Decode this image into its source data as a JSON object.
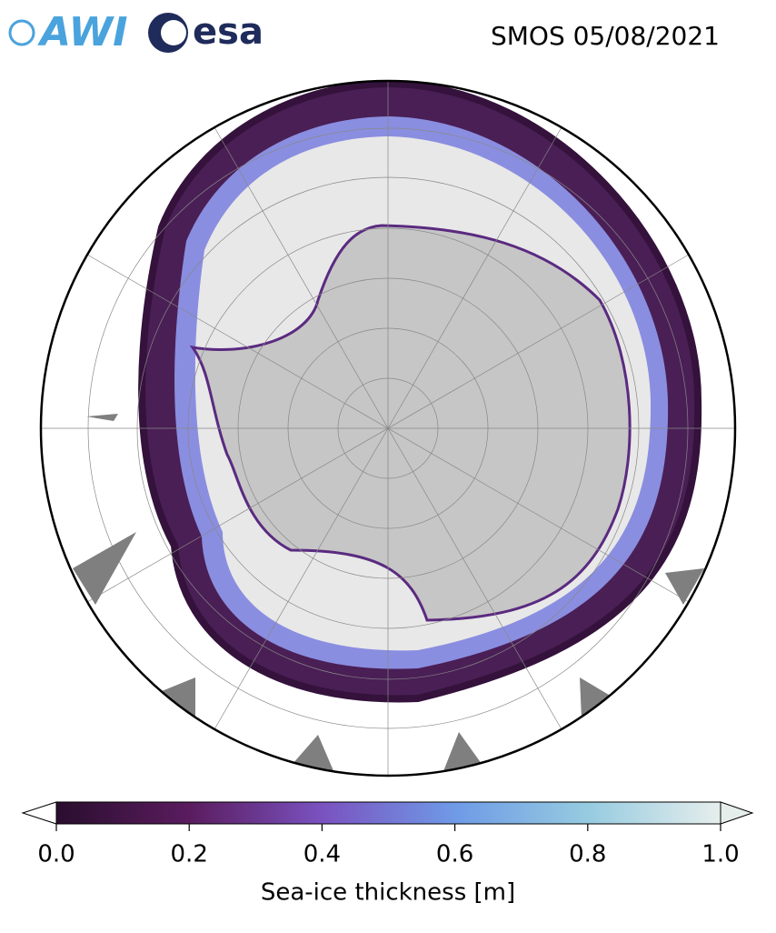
{
  "header": {
    "logos": [
      "AWI",
      "esa"
    ],
    "title": "SMOS 05/08/2021"
  },
  "colorbar": {
    "label": "Sea-ice thickness [m]",
    "lim": [
      0,
      1
    ],
    "ticks": [
      {
        "value": 0,
        "label": "0.0"
      },
      {
        "value": 0.2,
        "label": "0.2"
      },
      {
        "value": 0.4,
        "label": "0.4"
      },
      {
        "value": 0.6,
        "label": "0.6"
      },
      {
        "value": 0.8,
        "label": "0.8"
      },
      {
        "value": 1,
        "label": "1.0"
      }
    ],
    "colors": [
      "#2a0e2e",
      "#5a1c5e",
      "#7a52c0",
      "#6f9ae6",
      "#96cbe0",
      "#e6eeec"
    ]
  }
}
